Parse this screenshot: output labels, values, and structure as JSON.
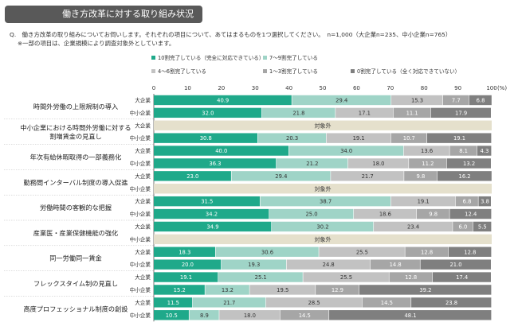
{
  "header": {
    "title": "働き方改革に対する取り組み状況",
    "question": "Q.　働き方改革の取り組みについてお伺いします。それぞれの項目について、あてはまるものを1つ選択してください。　n=1,000（大企業n=235、中小企業n=765）",
    "note": "※一部の項目は、企業規模により調査対象外としています。"
  },
  "chart_data": {
    "type": "bar",
    "orientation": "horizontal",
    "stacked": true,
    "xlim": [
      0,
      100
    ],
    "x_ticks": [
      "0",
      "10",
      "20",
      "30",
      "40",
      "50",
      "60",
      "70",
      "80",
      "90",
      "100"
    ],
    "x_unit": "(%)",
    "legend_position": "top",
    "series": [
      {
        "name": "10割完了している（完全に対応できている）",
        "color": "#1FA98A"
      },
      {
        "name": "7～9割完了している",
        "color": "#9FD4C7"
      },
      {
        "name": "4～6割完了している",
        "color": "#C2C2C2"
      },
      {
        "name": "1～3割完了している",
        "color": "#A6A6A6"
      },
      {
        "name": "0割完了している（全く対応できていない）",
        "color": "#7F7F7F"
      }
    ],
    "excluded_label": "対象外",
    "excluded_color": "#E5E0CC",
    "groups": [
      {
        "label": "時間外労働の上限規制の導入",
        "rows": [
          {
            "size": "大企業",
            "values": [
              40.9,
              29.4,
              15.3,
              7.7,
              6.8
            ]
          },
          {
            "size": "中小企業",
            "values": [
              32.0,
              21.8,
              17.1,
              11.1,
              17.9
            ]
          }
        ]
      },
      {
        "label": "中小企業における時間外労働に対する割増賃金の見直し",
        "line1": "中小企業における時間外労働に対する",
        "line2": "割増賃金の見直し",
        "rows": [
          {
            "size": "大企業",
            "values": null
          },
          {
            "size": "中小企業",
            "values": [
              30.8,
              20.3,
              19.1,
              10.7,
              19.1
            ]
          }
        ]
      },
      {
        "label": "年次有給休暇取得の一部義務化",
        "rows": [
          {
            "size": "大企業",
            "values": [
              40.0,
              34.0,
              13.6,
              8.1,
              4.3
            ]
          },
          {
            "size": "中小企業",
            "values": [
              36.3,
              21.2,
              18.0,
              11.2,
              13.2
            ]
          }
        ]
      },
      {
        "label": "勤務間インターバル制度の導入促進",
        "rows": [
          {
            "size": "大企業",
            "values": [
              23.0,
              29.4,
              21.7,
              9.8,
              16.2
            ]
          },
          {
            "size": "中小企業",
            "values": null
          }
        ]
      },
      {
        "label": "労働時間の客観的な把握",
        "rows": [
          {
            "size": "大企業",
            "values": [
              31.5,
              38.7,
              19.1,
              6.8,
              3.8
            ]
          },
          {
            "size": "中小企業",
            "values": [
              34.2,
              25.0,
              18.6,
              9.8,
              12.4
            ]
          }
        ]
      },
      {
        "label": "産業医・産業保健機能の強化",
        "rows": [
          {
            "size": "大企業",
            "values": [
              34.9,
              30.2,
              23.4,
              6.0,
              5.5
            ]
          },
          {
            "size": "中小企業",
            "values": null
          }
        ]
      },
      {
        "label": "同一労働同一賃金",
        "rows": [
          {
            "size": "大企業",
            "values": [
              18.3,
              30.6,
              25.5,
              12.8,
              12.8
            ]
          },
          {
            "size": "中小企業",
            "values": [
              20.0,
              19.3,
              24.8,
              14.8,
              21.0
            ]
          }
        ]
      },
      {
        "label": "フレックスタイム制の見直し",
        "rows": [
          {
            "size": "大企業",
            "values": [
              19.1,
              25.1,
              25.5,
              12.8,
              17.4
            ]
          },
          {
            "size": "中小企業",
            "values": [
              15.2,
              13.2,
              19.5,
              12.9,
              39.2
            ]
          }
        ]
      },
      {
        "label": "高度プロフェッショナル制度の創設",
        "rows": [
          {
            "size": "大企業",
            "values": [
              11.5,
              21.7,
              28.5,
              14.5,
              23.8
            ]
          },
          {
            "size": "中小企業",
            "values": [
              10.5,
              8.9,
              18.0,
              14.5,
              48.1
            ]
          }
        ]
      }
    ]
  }
}
